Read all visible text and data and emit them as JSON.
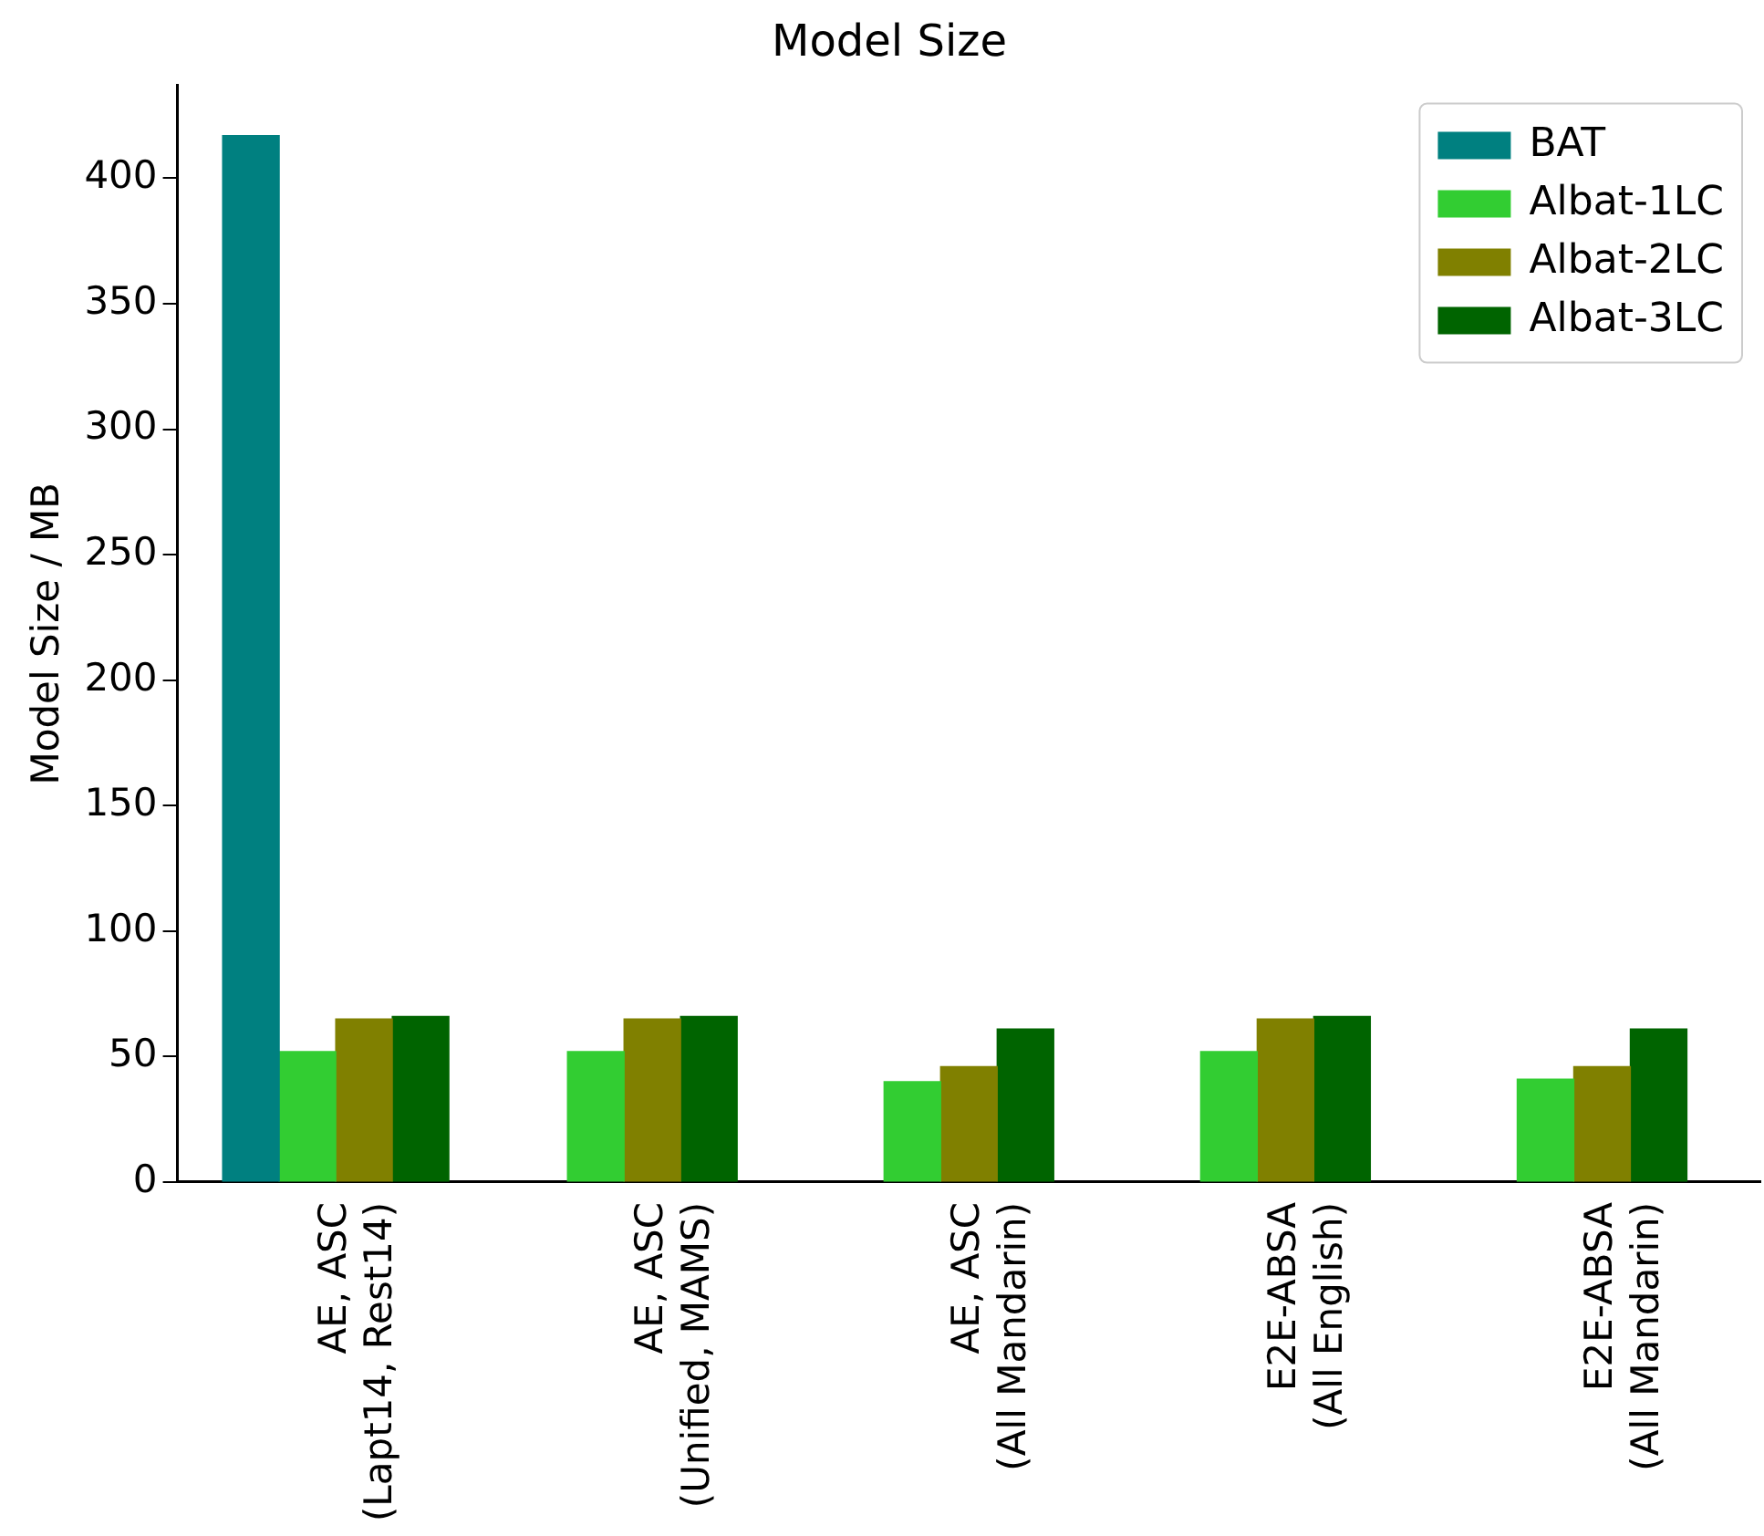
{
  "chart_data": {
    "type": "bar",
    "title": "Model Size",
    "ylabel": "Model Size / MB",
    "categories": [
      "AE, ASC\n(Lapt14, Rest14)",
      "AE, ASC\n(Unified, MAMS)",
      "AE, ASC\n(All Mandarin)",
      "E2E-ABSA\n(All English)",
      "E2E-ABSA\n(All Mandarin)"
    ],
    "series": [
      {
        "name": "BAT",
        "color": "#008080",
        "values": [
          417,
          null,
          null,
          null,
          null
        ]
      },
      {
        "name": "Albat-1LC",
        "color": "#32cd32",
        "values": [
          52,
          52,
          40,
          52,
          41
        ]
      },
      {
        "name": "Albat-2LC",
        "color": "#808000",
        "values": [
          65,
          65,
          46,
          65,
          46
        ]
      },
      {
        "name": "Albat-3LC",
        "color": "#006400",
        "values": [
          66,
          66,
          61,
          66,
          61
        ]
      }
    ],
    "ylim": [
      0,
      437
    ],
    "yticks": [
      0,
      50,
      100,
      150,
      200,
      250,
      300,
      350,
      400
    ],
    "legend": "top right",
    "grid": false
  }
}
